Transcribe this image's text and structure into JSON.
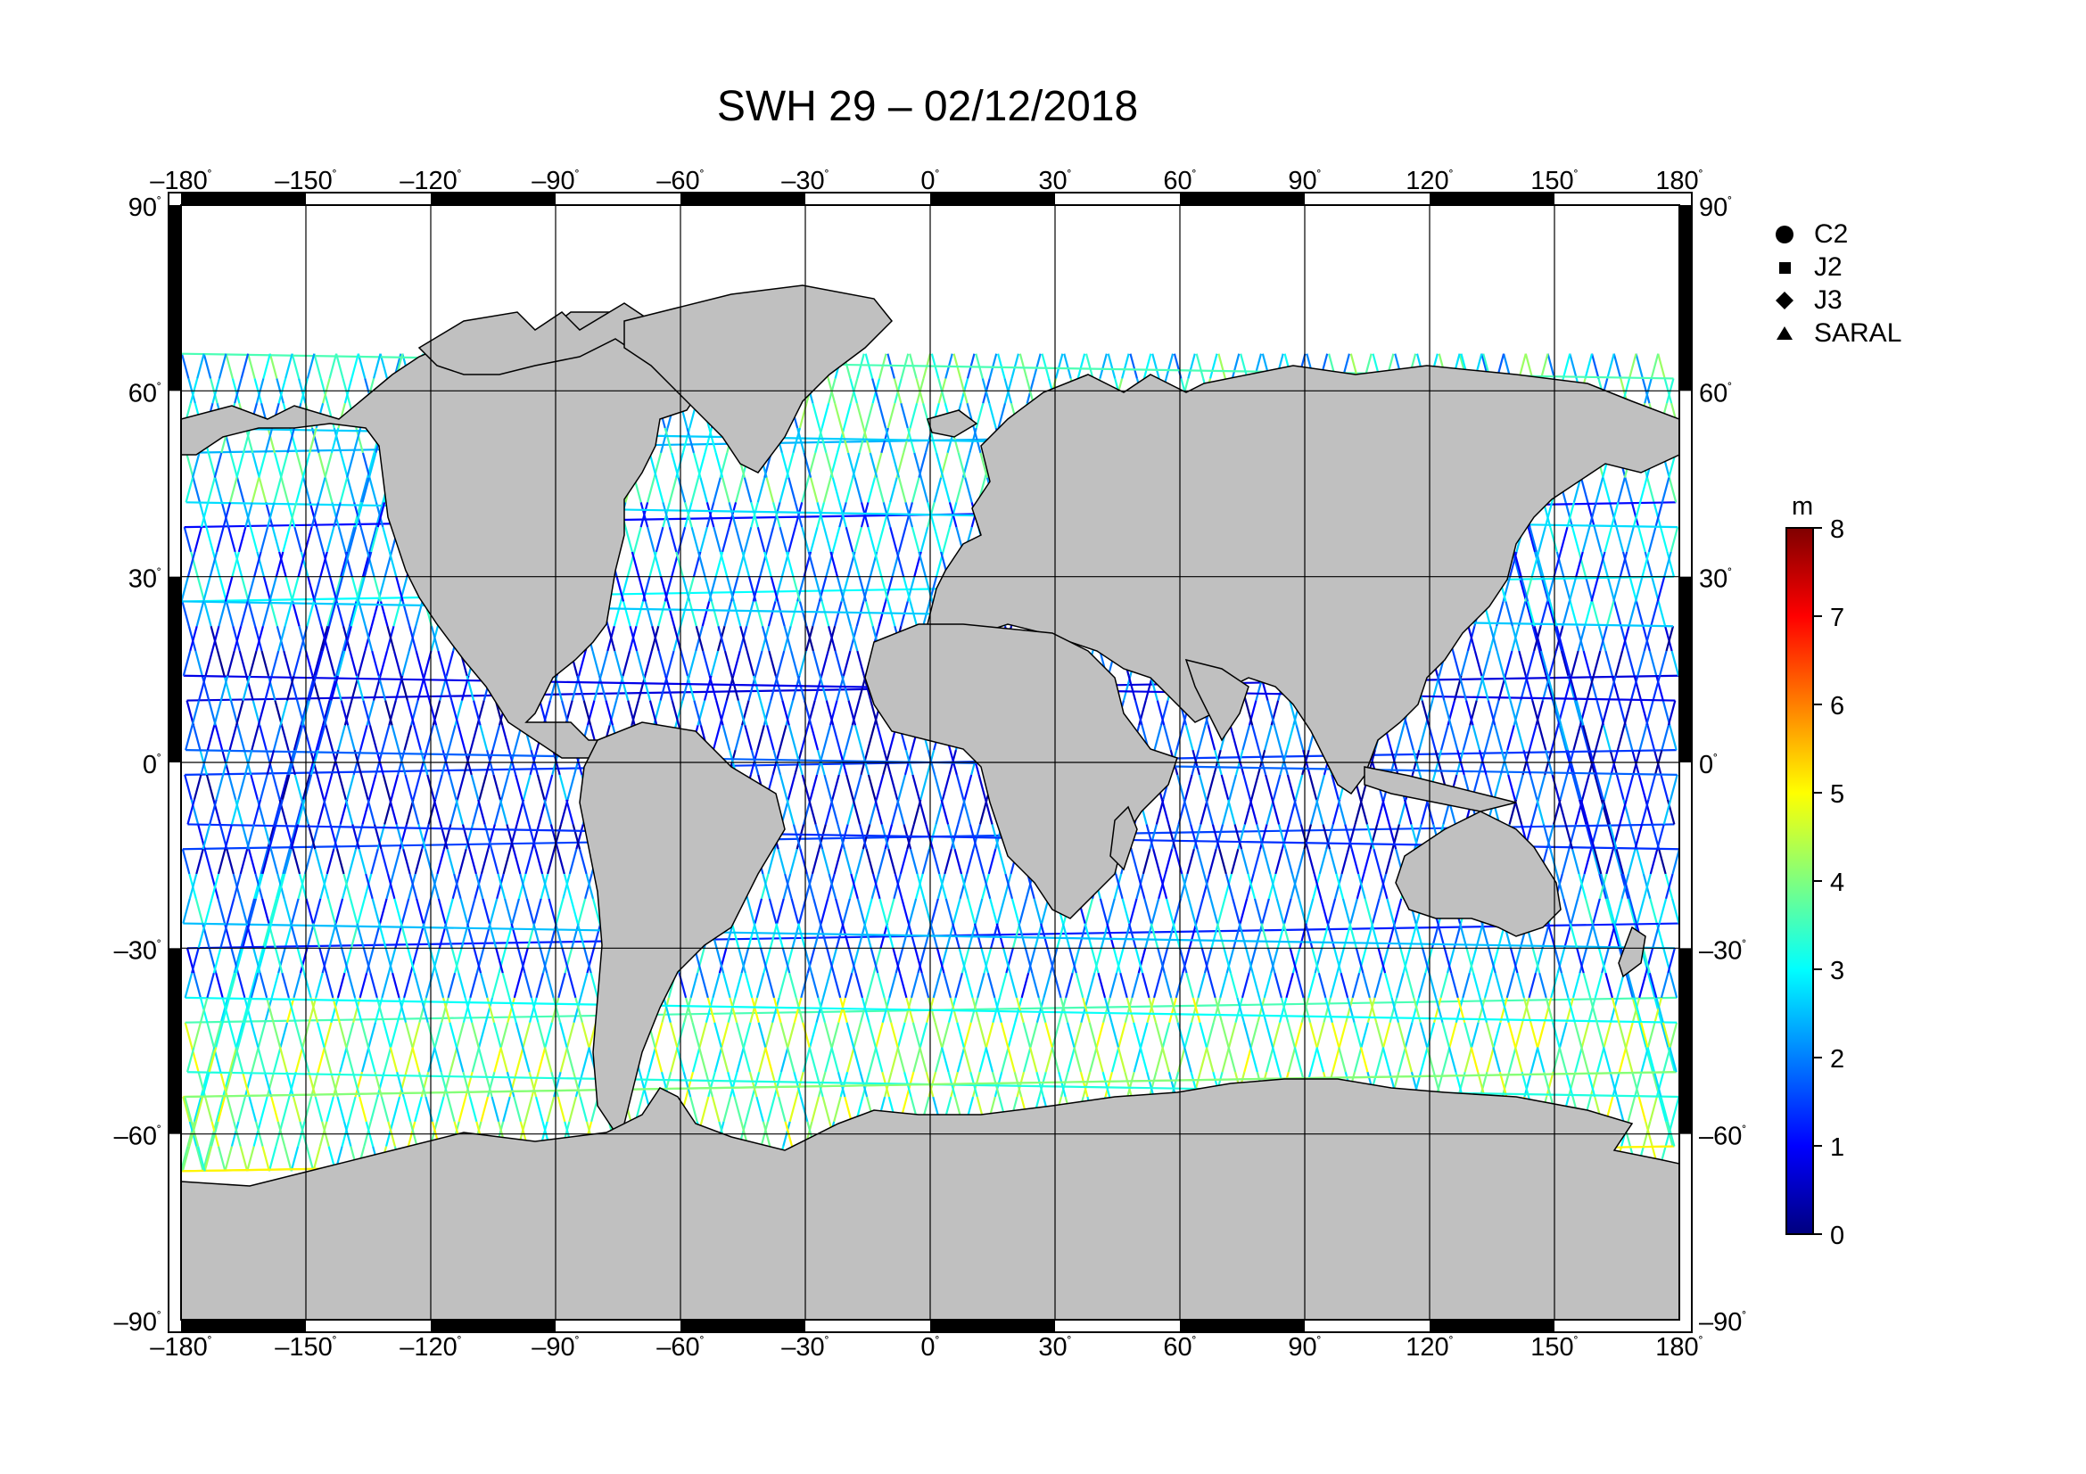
{
  "title": "SWH 29 – 02/12/2018",
  "map": {
    "lon_ticks": [
      "–180",
      "–150",
      "–120",
      "–90",
      "–60",
      "–30",
      "0",
      "30",
      "60",
      "90",
      "120",
      "150",
      "180"
    ],
    "lat_ticks_left": [
      "90",
      "60",
      "30",
      "0",
      "–30",
      "–60",
      "–90"
    ],
    "lat_ticks_right": [
      "90",
      "60",
      "30",
      "0",
      "–30",
      "–60",
      "–90"
    ],
    "degree_symbol": "˚",
    "land_color": "#c0c0c0",
    "ocean_color": "#ffffff",
    "grid_color": "#000000"
  },
  "legend": {
    "items": [
      {
        "label": "C2",
        "marker": "circle"
      },
      {
        "label": "J2",
        "marker": "square"
      },
      {
        "label": "J3",
        "marker": "diamond"
      },
      {
        "label": "SARAL",
        "marker": "triangle"
      }
    ]
  },
  "colorbar": {
    "unit": "m",
    "min": 0,
    "max": 8,
    "tick_labels": [
      "0",
      "1",
      "2",
      "3",
      "4",
      "5",
      "6",
      "7",
      "8"
    ],
    "colors": [
      "#00007f",
      "#0000ff",
      "#007fff",
      "#00ffff",
      "#7fff7f",
      "#ffff00",
      "#ff7f00",
      "#ff0000",
      "#7f0000"
    ]
  }
}
